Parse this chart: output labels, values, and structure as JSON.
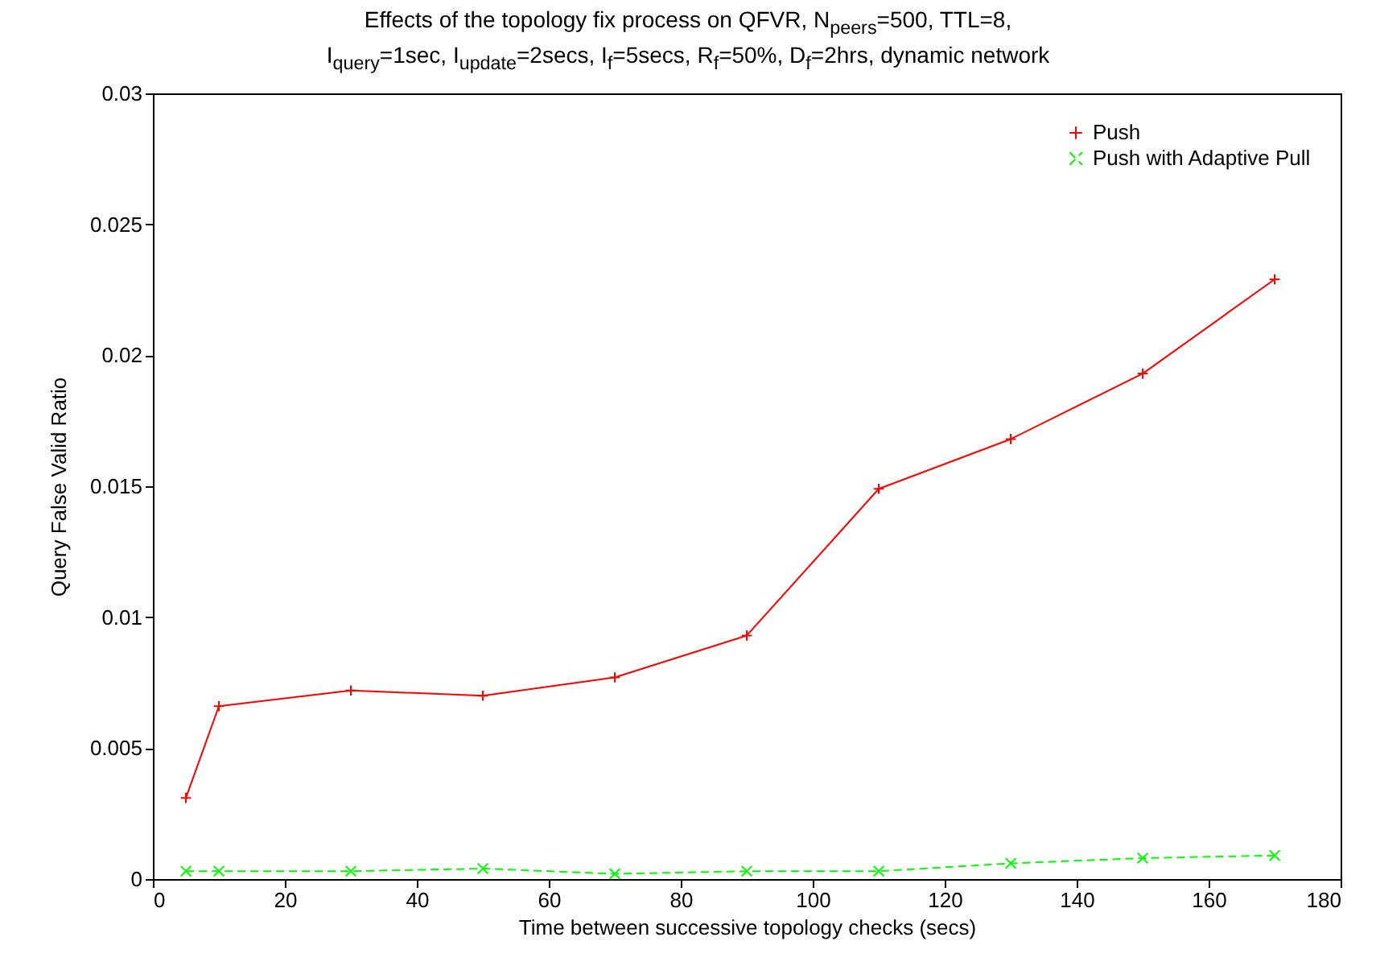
{
  "chart_data": {
    "type": "line",
    "title": "Effects of the topology fix process on QFVR, N$_{peers}$=500, TTL=8,\nI$_{query}$=1sec, I$_{update}$=2secs, I$_{f}$=5secs, R$_{f}$=50%, D$_{f}$=2hrs, dynamic network",
    "xlabel": "Time between successive topology checks (secs)",
    "ylabel": "Query False Valid Ratio",
    "x": [
      5,
      10,
      30,
      50,
      70,
      90,
      110,
      130,
      150,
      170
    ],
    "series": [
      {
        "name": "Push",
        "color": "#ff0000",
        "line_style": "solid",
        "values": [
          0.0031,
          0.0066,
          0.0072,
          0.007,
          0.0077,
          0.0093,
          0.0149,
          0.0168,
          0.0193,
          0.0229
        ]
      },
      {
        "name": "Push with Adaptive Pull",
        "color": "#00ff00",
        "line_style": "dashed",
        "values": [
          0.0003,
          0.0003,
          0.0003,
          0.0004,
          0.0002,
          0.0003,
          0.0003,
          0.0006,
          0.0008,
          0.0009
        ]
      }
    ],
    "xlim": [
      0,
      180
    ],
    "xticks": [
      0,
      20,
      40,
      60,
      80,
      100,
      120,
      140,
      160,
      180
    ],
    "ylim": [
      0,
      0.03
    ],
    "yticks": [
      0,
      0.005,
      0.01,
      0.015,
      0.02,
      0.025,
      0.03
    ],
    "grid": false,
    "legend": "top right",
    "marker": "cross"
  }
}
